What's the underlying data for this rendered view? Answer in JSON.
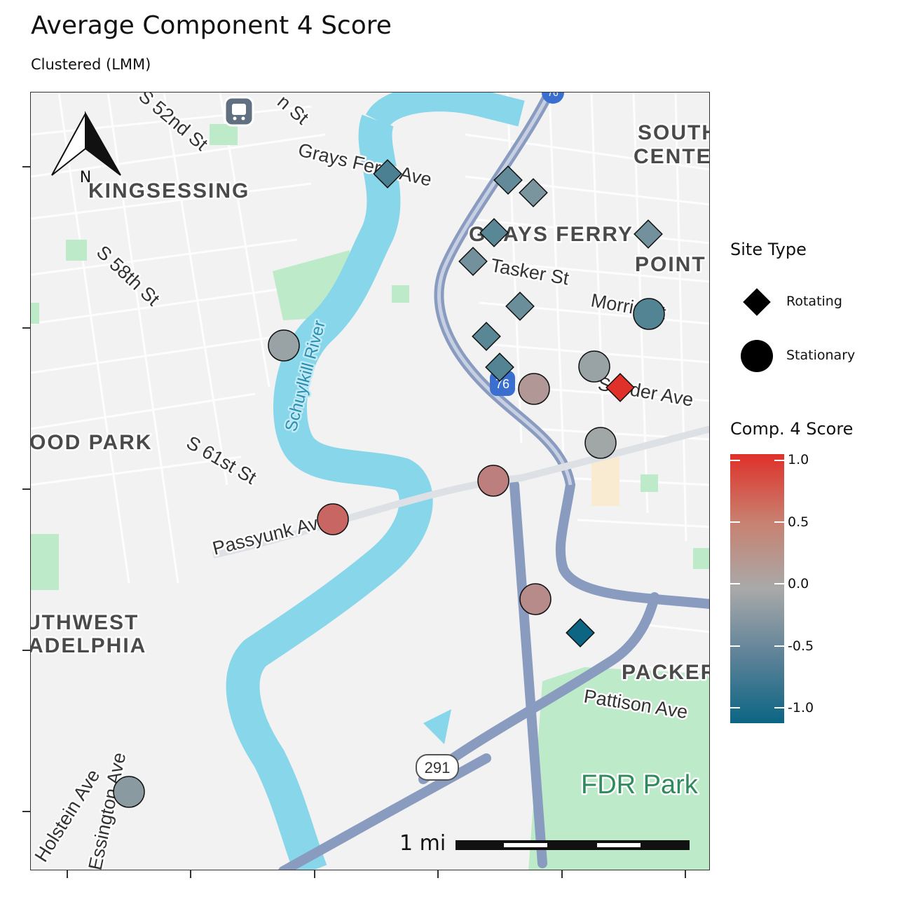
{
  "title": "Average Component 4 Score",
  "subtitle": "Clustered (LMM)",
  "map": {
    "district_labels": [
      "KINGSESSING",
      "GRAYS FERRY",
      "POINT",
      "SOUTH",
      "CENTER",
      "OOD PARK",
      "UTHWEST",
      "ADELPHIA",
      "PACKER"
    ],
    "street_labels": [
      "S 52nd St",
      "Grays Ferry Ave",
      "S 58th St",
      "Tasker St",
      "Morris St",
      "Snyder Ave",
      "S 61st St",
      "Passyunk Ave",
      "Pattison Ave",
      "Holstein Ave",
      "Essington Ave",
      "n St"
    ],
    "water_labels": [
      "Schuylkill River"
    ],
    "park_labels": [
      "FDR Park"
    ],
    "route_shields": [
      "76",
      "291",
      "76"
    ],
    "north_arrow": "N",
    "scale_bar": "1 mi"
  },
  "legend": {
    "shape_title": "Site Type",
    "shape_items": [
      {
        "label": "Rotating",
        "shape": "diamond"
      },
      {
        "label": "Stationary",
        "shape": "circle"
      }
    ],
    "color_title": "Comp. 4 Score",
    "color_ticks": [
      "1.0",
      "0.5",
      "0.0",
      "-0.5",
      "-1.0"
    ],
    "colors": {
      "high": "#e0302a",
      "mid": "#a9a9a9",
      "low": "#0b6583"
    }
  },
  "chart_data": {
    "type": "scatter",
    "color_range": [
      -1.0,
      1.0
    ],
    "points": [
      {
        "site": "Rotating",
        "score": -0.6
      },
      {
        "site": "Rotating",
        "score": -0.45
      },
      {
        "site": "Rotating",
        "score": -0.3
      },
      {
        "site": "Rotating",
        "score": -0.5
      },
      {
        "site": "Rotating",
        "score": -0.35
      },
      {
        "site": "Rotating",
        "score": -0.35
      },
      {
        "site": "Rotating",
        "score": -0.4
      },
      {
        "site": "Rotating",
        "score": -0.5
      },
      {
        "site": "Rotating",
        "score": -0.55
      },
      {
        "site": "Rotating",
        "score": 1.0
      },
      {
        "site": "Rotating",
        "score": -1.0
      },
      {
        "site": "Stationary",
        "score": -0.55
      },
      {
        "site": "Stationary",
        "score": -0.1
      },
      {
        "site": "Stationary",
        "score": -0.1
      },
      {
        "site": "Stationary",
        "score": 0.15
      },
      {
        "site": "Stationary",
        "score": -0.05
      },
      {
        "site": "Stationary",
        "score": 0.35
      },
      {
        "site": "Stationary",
        "score": 0.55
      },
      {
        "site": "Stationary",
        "score": 0.25
      },
      {
        "site": "Stationary",
        "score": -0.2
      }
    ]
  }
}
